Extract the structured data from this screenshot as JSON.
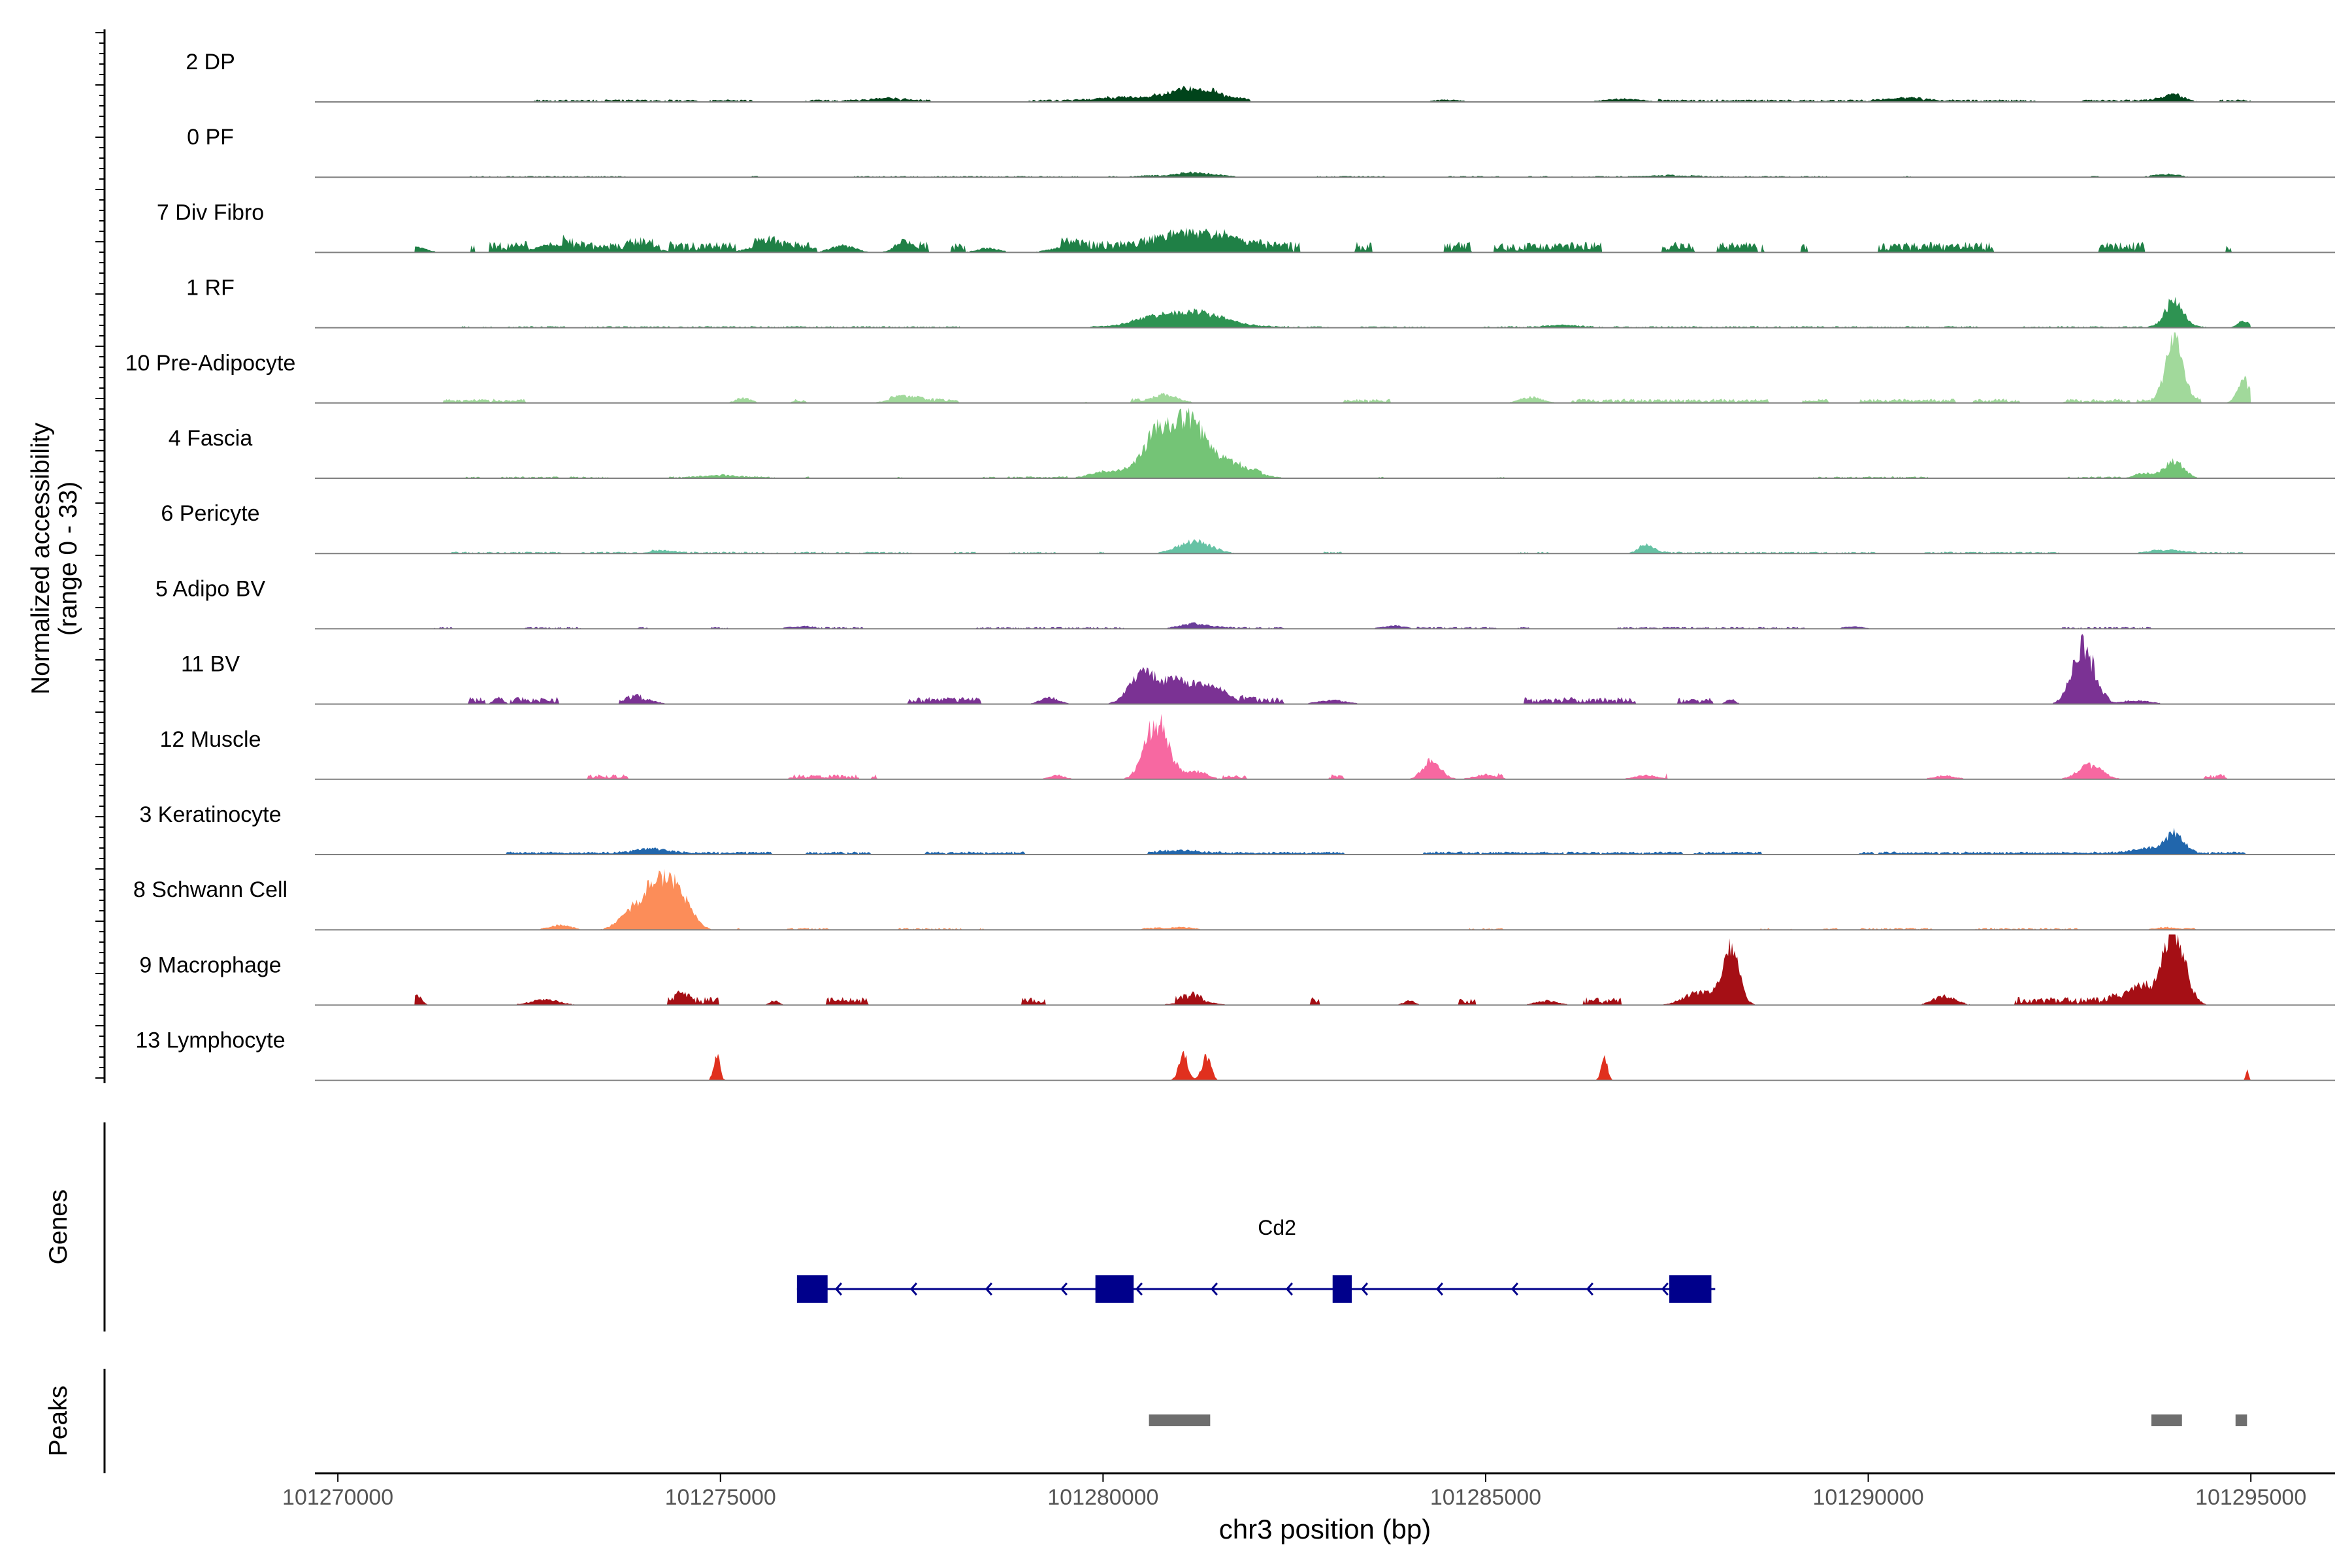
{
  "chart_data": {
    "type": "area",
    "chromosome": "chr3",
    "xlabel": "chr3 position (bp)",
    "ylabel_line1": "Normalized accessibility",
    "ylabel_line2": "(range 0 - 33)",
    "y_range": [
      0,
      33
    ],
    "xlim": [
      101269700,
      101296100
    ],
    "x_ticks": [
      {
        "value": 101270000,
        "label": "101270000"
      },
      {
        "value": 101275000,
        "label": "101275000"
      },
      {
        "value": 101280000,
        "label": "101280000"
      },
      {
        "value": 101285000,
        "label": "101285000"
      },
      {
        "value": 101290000,
        "label": "101290000"
      },
      {
        "value": 101295000,
        "label": "101295000"
      }
    ],
    "data_window": [
      101271000,
      101295000
    ],
    "tracks": [
      {
        "label": "2 DP",
        "color": "#00441b",
        "base": 0.4,
        "noise": 0.5,
        "cov": 0.55,
        "peaks": [
          [
            101281200,
            2.4,
            320
          ],
          [
            101280300,
            0.9,
            300
          ],
          [
            101277200,
            0.5,
            200
          ],
          [
            101286800,
            0.6,
            250
          ],
          [
            101290500,
            0.6,
            220
          ],
          [
            101294000,
            1.2,
            150
          ],
          [
            101284500,
            0.4,
            200
          ]
        ]
      },
      {
        "label": "0 PF",
        "color": "#1b6b38",
        "base": 0.25,
        "noise": 0.45,
        "cov": 0.6,
        "peaks": [
          [
            101281200,
            0.8,
            320
          ],
          [
            101293900,
            0.6,
            180
          ],
          [
            101287500,
            0.3,
            200
          ]
        ]
      },
      {
        "label": "7 Div Fibro",
        "color": "#1f8046",
        "base": 0.9,
        "noise": 1.2,
        "cov": 0.45,
        "peaks": [
          [
            101281200,
            2.8,
            500
          ],
          [
            101277400,
            2.2,
            120
          ],
          [
            101275600,
            1.4,
            220
          ],
          [
            101272800,
            1.6,
            200
          ],
          [
            101274000,
            0.9,
            200
          ],
          [
            101279500,
            1.0,
            200
          ],
          [
            101271000,
            1.0,
            150
          ],
          [
            101278500,
            0.8,
            150
          ],
          [
            101276600,
            1.3,
            160
          ]
        ]
      },
      {
        "label": "1 RF",
        "color": "#2e9352",
        "base": 0.3,
        "noise": 0.4,
        "cov": 0.65,
        "peaks": [
          [
            101281200,
            2.7,
            380
          ],
          [
            101280600,
            1.2,
            250
          ],
          [
            101294000,
            5.5,
            110
          ],
          [
            101294900,
            1.0,
            80
          ],
          [
            101286000,
            0.3,
            200
          ]
        ]
      },
      {
        "label": "10 Pre-Adipocyte",
        "color": "#a1d99b",
        "base": 0.5,
        "noise": 0.8,
        "cov": 0.28,
        "peaks": [
          [
            101294000,
            12.5,
            110
          ],
          [
            101294900,
            4.5,
            80
          ],
          [
            101280800,
            1.6,
            180
          ],
          [
            101275300,
            1.0,
            100
          ],
          [
            101285600,
            1.1,
            150
          ],
          [
            101277400,
            0.9,
            200
          ]
        ]
      },
      {
        "label": "4 Fascia",
        "color": "#74c476",
        "base": 0.3,
        "noise": 0.5,
        "cov": 0.5,
        "peaks": [
          [
            101281100,
            9.5,
            220
          ],
          [
            101280700,
            7.2,
            190
          ],
          [
            101281600,
            3.2,
            300
          ],
          [
            101280100,
            1.2,
            250
          ],
          [
            101294000,
            3.2,
            130
          ],
          [
            101293600,
            1.0,
            120
          ],
          [
            101275000,
            0.4,
            200
          ]
        ]
      },
      {
        "label": "6 Pericyte",
        "color": "#66c2a4",
        "base": 0.3,
        "noise": 0.5,
        "cov": 0.45,
        "peaks": [
          [
            101281200,
            2.3,
            220
          ],
          [
            101287100,
            1.6,
            100
          ],
          [
            101293900,
            0.7,
            150
          ],
          [
            101274200,
            0.4,
            150
          ]
        ]
      },
      {
        "label": "5 Adipo BV",
        "color": "#6a3d9a",
        "base": 0.3,
        "noise": 0.5,
        "cov": 0.4,
        "peaks": [
          [
            101281200,
            1.0,
            200
          ],
          [
            101283800,
            0.6,
            150
          ],
          [
            101276000,
            0.4,
            150
          ],
          [
            101289800,
            0.4,
            150
          ]
        ]
      },
      {
        "label": "11 BV",
        "color": "#7b3294",
        "base": 0.7,
        "noise": 1.0,
        "cov": 0.25,
        "peaks": [
          [
            101292800,
            10.5,
            140
          ],
          [
            101280500,
            5.0,
            160
          ],
          [
            101281000,
            4.4,
            320
          ],
          [
            101281500,
            2.0,
            160
          ],
          [
            101272100,
            1.3,
            60
          ],
          [
            101279300,
            1.2,
            120
          ],
          [
            101288200,
            1.0,
            60
          ],
          [
            101274000,
            0.9,
            150
          ],
          [
            101293500,
            0.7,
            200
          ],
          [
            101283000,
            0.7,
            200
          ]
        ]
      },
      {
        "label": "12 Muscle",
        "color": "#f768a1",
        "base": 0.6,
        "noise": 0.8,
        "cov": 0.22,
        "peaks": [
          [
            101280700,
            11.0,
            150
          ],
          [
            101284300,
            3.6,
            120
          ],
          [
            101292900,
            2.6,
            160
          ],
          [
            101281200,
            1.6,
            150
          ],
          [
            101279400,
            0.8,
            100
          ],
          [
            101287100,
            0.8,
            150
          ],
          [
            101285000,
            0.9,
            150
          ],
          [
            101291000,
            0.7,
            150
          ]
        ]
      },
      {
        "label": "3 Keratinocyte",
        "color": "#2166ac",
        "base": 0.5,
        "noise": 0.5,
        "cov": 0.7,
        "peaks": [
          [
            101294000,
            3.5,
            120
          ],
          [
            101293700,
            1.0,
            200
          ],
          [
            101274100,
            0.8,
            200
          ],
          [
            101281000,
            0.5,
            250
          ]
        ]
      },
      {
        "label": "8 Schwann Cell",
        "color": "#fc8d59",
        "base": 0.3,
        "noise": 0.5,
        "cov": 0.3,
        "peaks": [
          [
            101274200,
            9.5,
            200
          ],
          [
            101274500,
            4.0,
            150
          ],
          [
            101273800,
            2.5,
            150
          ],
          [
            101272900,
            0.9,
            150
          ],
          [
            101293900,
            0.5,
            150
          ],
          [
            101281000,
            0.5,
            200
          ]
        ]
      },
      {
        "label": "9 Macrophage",
        "color": "#a50f15",
        "base": 0.8,
        "noise": 1.0,
        "cov": 0.32,
        "peaks": [
          [
            101294000,
            14.0,
            140
          ],
          [
            101293600,
            2.5,
            250
          ],
          [
            101288200,
            10.5,
            110
          ],
          [
            101287800,
            2.5,
            200
          ],
          [
            101271000,
            2.2,
            80
          ],
          [
            101291000,
            1.7,
            150
          ],
          [
            101274500,
            1.5,
            80
          ],
          [
            101281200,
            1.0,
            200
          ],
          [
            101272700,
            1.0,
            200
          ],
          [
            101275700,
            0.9,
            60
          ],
          [
            101285800,
            0.8,
            150
          ],
          [
            101284000,
            0.8,
            80
          ]
        ]
      },
      {
        "label": "13 Lymphocyte",
        "color": "#e0301e",
        "base": 0.0,
        "noise": 0.0,
        "cov": 0.0,
        "peaks": [
          [
            101274950,
            5.0,
            40
          ],
          [
            101281050,
            4.8,
            60
          ],
          [
            101281350,
            4.4,
            60
          ],
          [
            101286550,
            4.6,
            40
          ],
          [
            101294950,
            2.0,
            20
          ]
        ]
      }
    ],
    "genes_panel_label": "Genes",
    "genes": [
      {
        "name": "Cd2",
        "strand": "-",
        "start": 101276000,
        "end": 101288000,
        "color": "#00008b",
        "exons": [
          [
            101276000,
            101276400
          ],
          [
            101279900,
            101280400
          ],
          [
            101283000,
            101283250
          ],
          [
            101287400,
            101287950
          ]
        ]
      }
    ],
    "peaks_panel_label": "Peaks",
    "peaks": [
      [
        101280600,
        101281400
      ],
      [
        101293700,
        101294100
      ],
      [
        101294800,
        101294950
      ]
    ],
    "peak_color": "#6e6e6e"
  }
}
